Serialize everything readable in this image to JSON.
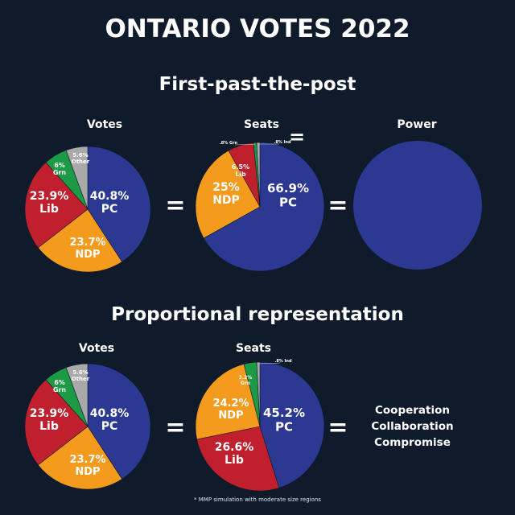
{
  "title": "ONTARIO VOTES 2022",
  "colors": {
    "PC": "#2b3993",
    "NDP": "#f49a1d",
    "Lib": "#c0202e",
    "Grn": "#1d9a45",
    "Other": "#a9a9a9",
    "Ind": "#a9a9a9",
    "background": "#0f1a2a"
  },
  "sections": [
    {
      "title": "First-past-the-post",
      "labels": [
        "Votes",
        "Seats",
        "Power"
      ]
    },
    {
      "title": "Proportional representation",
      "labels": [
        "Votes",
        "Seats"
      ]
    }
  ],
  "equals_sign": "=",
  "outcome": {
    "lines": [
      "Cooperation",
      "Collaboration",
      "Compromise"
    ]
  },
  "footnote": "* MMP simulation with moderate size regions",
  "chart_data": [
    {
      "type": "pie",
      "title": "Votes",
      "section": "First-past-the-post",
      "slices": [
        {
          "party": "PC",
          "value": 40.8,
          "pct": "40.8%"
        },
        {
          "party": "NDP",
          "value": 23.7,
          "pct": "23.7%"
        },
        {
          "party": "Lib",
          "value": 23.9,
          "pct": "23.9%"
        },
        {
          "party": "Grn",
          "value": 6.0,
          "pct": "6%"
        },
        {
          "party": "Other",
          "value": 5.6,
          "pct": "5.6%"
        }
      ]
    },
    {
      "type": "pie",
      "title": "Seats",
      "section": "First-past-the-post",
      "slices": [
        {
          "party": "PC",
          "value": 66.9,
          "pct": "66.9%"
        },
        {
          "party": "NDP",
          "value": 25.0,
          "pct": "25%"
        },
        {
          "party": "Lib",
          "value": 6.5,
          "pct": "6.5%"
        },
        {
          "party": "Grn",
          "value": 0.8,
          "pct": ".8%"
        },
        {
          "party": "Ind",
          "value": 0.8,
          "pct": ".8%"
        }
      ]
    },
    {
      "type": "pie",
      "title": "Power",
      "section": "First-past-the-post",
      "slices": [
        {
          "party": "PC",
          "value": 100
        }
      ]
    },
    {
      "type": "pie",
      "title": "Votes",
      "section": "Proportional representation",
      "slices": [
        {
          "party": "PC",
          "value": 40.8,
          "pct": "40.8%"
        },
        {
          "party": "NDP",
          "value": 23.7,
          "pct": "23.7%"
        },
        {
          "party": "Lib",
          "value": 23.9,
          "pct": "23.9%"
        },
        {
          "party": "Grn",
          "value": 6.0,
          "pct": "6%"
        },
        {
          "party": "Other",
          "value": 5.6,
          "pct": "5.6%"
        }
      ]
    },
    {
      "type": "pie",
      "title": "Seats",
      "section": "Proportional representation",
      "slices": [
        {
          "party": "PC",
          "value": 45.2,
          "pct": "45.2%"
        },
        {
          "party": "Lib",
          "value": 26.6,
          "pct": "26.6%"
        },
        {
          "party": "NDP",
          "value": 24.2,
          "pct": "24.2%"
        },
        {
          "party": "Grn",
          "value": 3.2,
          "pct": "3.2%"
        },
        {
          "party": "Ind",
          "value": 0.8,
          "pct": ".8%"
        }
      ]
    }
  ]
}
